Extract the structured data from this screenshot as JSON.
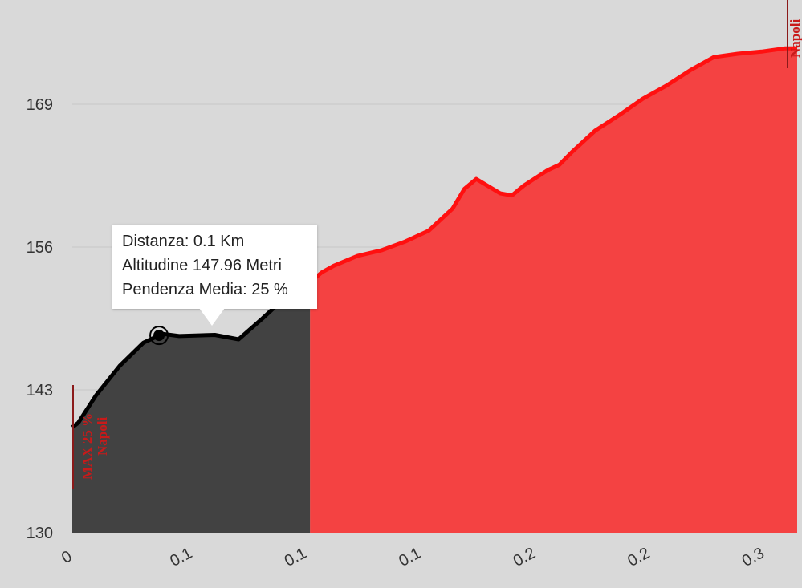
{
  "chart_data": {
    "type": "area",
    "x_tick_labels": [
      "0",
      "0.1",
      "0.1",
      "0.1",
      "0.2",
      "0.2",
      "0.3"
    ],
    "y_tick_labels": [
      "130",
      "143",
      "156",
      "169"
    ],
    "ylim": [
      130,
      173
    ],
    "xlim": [
      0,
      0.305
    ],
    "grid": "horizontal",
    "x": [
      0,
      0.0025,
      0.01,
      0.02,
      0.03,
      0.038,
      0.045,
      0.06,
      0.07,
      0.08,
      0.09,
      0.1,
      0.105,
      0.11,
      0.12,
      0.13,
      0.14,
      0.15,
      0.16,
      0.165,
      0.17,
      0.18,
      0.185,
      0.19,
      0.2,
      0.205,
      0.21,
      0.22,
      0.23,
      0.24,
      0.25,
      0.26,
      0.27,
      0.28,
      0.29,
      0.3,
      0.305
    ],
    "y": [
      139.6,
      140,
      142.5,
      145.2,
      147.3,
      148.1,
      147.9,
      148,
      147.6,
      149.5,
      151.5,
      152.8,
      153.7,
      154.3,
      155.2,
      155.7,
      156.5,
      157.5,
      159.5,
      161.3,
      162.2,
      160.9,
      160.7,
      161.6,
      163,
      163.5,
      164.6,
      166.6,
      168,
      169.5,
      170.7,
      172.1,
      173.3,
      173.6,
      173.8,
      174.1,
      174.1
    ],
    "highlight_split_x": 0.1,
    "colors": {
      "passed_fill": "#424242",
      "passed_line": "#000000",
      "remaining_fill": "#f44242",
      "remaining_line": "#ff1010",
      "marker_line": "#8b1a1a"
    },
    "hover_point": {
      "x": 0.0365,
      "y": 147.96
    },
    "annotations": {
      "start_label": "MAX 25 %",
      "start_place": "Napoli",
      "end_place": "Napoli"
    }
  },
  "tooltip": {
    "line1": "Distanza: 0.1 Km",
    "line2": "Altitudine 147.96 Metri",
    "line3": "Pendenza Media: 25 %"
  }
}
